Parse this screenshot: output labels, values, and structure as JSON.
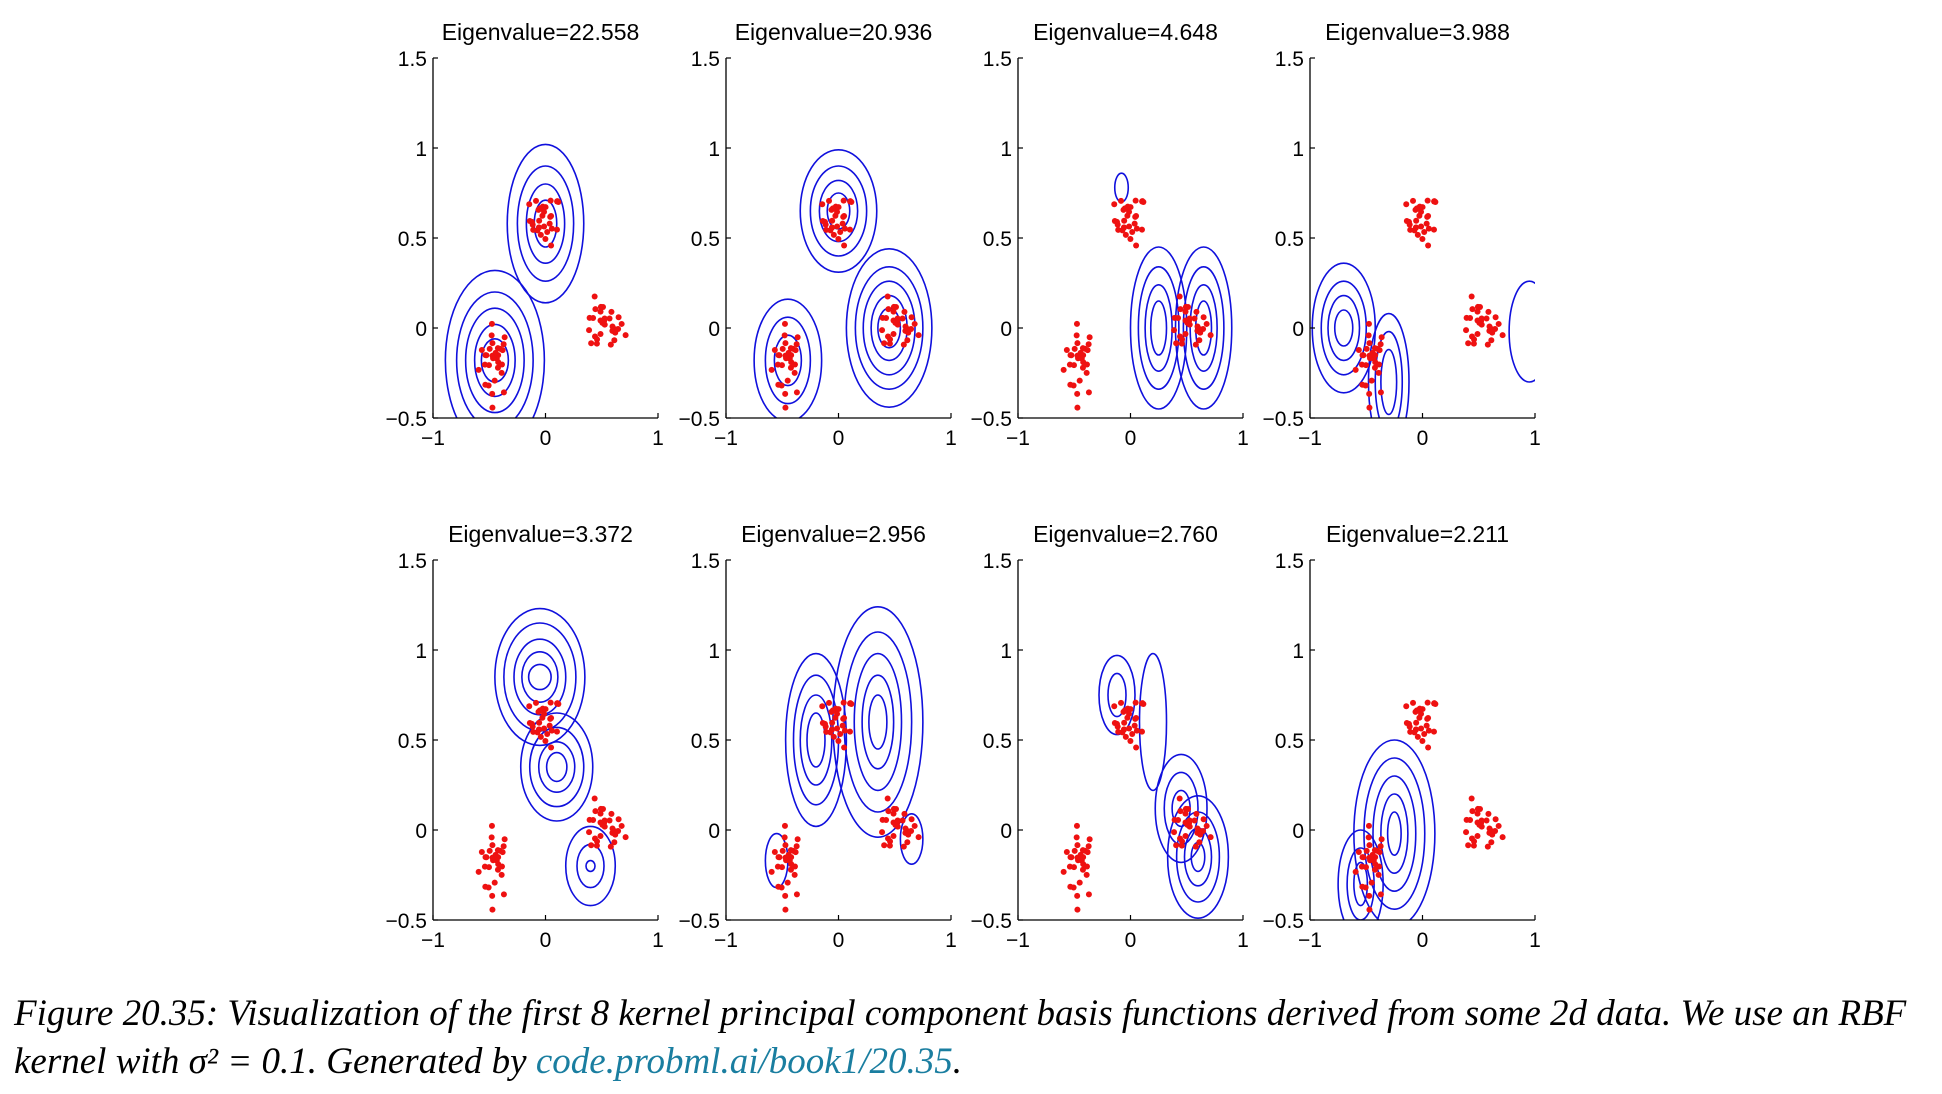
{
  "colors": {
    "contour": "#1010dd",
    "points": "#ee1111",
    "axis": "#000000",
    "link": "#1a7ea0"
  },
  "caption": {
    "text": "Figure 20.35: Visualization of the first 8 kernel principal component basis functions derived from some 2d data. We use an RBF kernel with σ² = 0.1. Generated by",
    "link": "code.probml.ai/book1/20.35",
    "end": "."
  },
  "chart_data": [
    {
      "type": "contour",
      "title": "Eigenvalue=22.558",
      "xlim": [
        -1,
        1
      ],
      "ylim": [
        -0.5,
        1.5
      ],
      "xticks": [
        "−1",
        "0",
        "1"
      ],
      "yticks": [
        "−0.5",
        "0",
        "0.5",
        "1",
        "1.5"
      ],
      "contours": [
        [
          -0.45,
          -0.18,
          0.12,
          0.12
        ],
        [
          -0.45,
          -0.18,
          0.18,
          0.2
        ],
        [
          -0.45,
          -0.18,
          0.26,
          0.29
        ],
        [
          -0.45,
          -0.18,
          0.34,
          0.38
        ],
        [
          -0.45,
          -0.18,
          0.44,
          0.5
        ],
        [
          0.0,
          0.58,
          0.1,
          0.13
        ],
        [
          0.0,
          0.58,
          0.17,
          0.22
        ],
        [
          0.0,
          0.58,
          0.25,
          0.32
        ],
        [
          0.0,
          0.58,
          0.34,
          0.44
        ]
      ]
    },
    {
      "type": "contour",
      "title": "Eigenvalue=20.936",
      "xlim": [
        -1,
        1
      ],
      "ylim": [
        -0.5,
        1.5
      ],
      "xticks": [
        "−1",
        "0",
        "1"
      ],
      "yticks": [
        "−0.5",
        "0",
        "0.5",
        "1",
        "1.5"
      ],
      "contours": [
        [
          -0.45,
          -0.18,
          0.12,
          0.14
        ],
        [
          -0.45,
          -0.18,
          0.2,
          0.24
        ],
        [
          -0.45,
          -0.18,
          0.3,
          0.34
        ],
        [
          0.0,
          0.65,
          0.1,
          0.1
        ],
        [
          0.0,
          0.65,
          0.17,
          0.17
        ],
        [
          0.0,
          0.65,
          0.25,
          0.25
        ],
        [
          0.0,
          0.65,
          0.34,
          0.34
        ],
        [
          0.45,
          0.0,
          0.1,
          0.11
        ],
        [
          0.45,
          0.0,
          0.16,
          0.18
        ],
        [
          0.45,
          0.0,
          0.23,
          0.26
        ],
        [
          0.45,
          0.0,
          0.3,
          0.34
        ],
        [
          0.45,
          0.0,
          0.38,
          0.44
        ]
      ]
    },
    {
      "type": "contour",
      "title": "Eigenvalue=4.648",
      "xlim": [
        -1,
        1
      ],
      "ylim": [
        -0.5,
        1.5
      ],
      "xticks": [
        "−1",
        "0",
        "1"
      ],
      "yticks": [
        "−0.5",
        "0",
        "0.5",
        "1",
        "1.5"
      ],
      "contours": [
        [
          0.25,
          0.0,
          0.07,
          0.15
        ],
        [
          0.25,
          0.0,
          0.12,
          0.24
        ],
        [
          0.25,
          0.0,
          0.18,
          0.34
        ],
        [
          0.25,
          0.0,
          0.25,
          0.45
        ],
        [
          0.65,
          0.0,
          0.07,
          0.15
        ],
        [
          0.65,
          0.0,
          0.12,
          0.24
        ],
        [
          0.65,
          0.0,
          0.18,
          0.34
        ],
        [
          0.65,
          0.0,
          0.25,
          0.45
        ],
        [
          -0.08,
          0.78,
          0.06,
          0.08
        ]
      ]
    },
    {
      "type": "contour",
      "title": "Eigenvalue=3.988",
      "xlim": [
        -1,
        1
      ],
      "ylim": [
        -0.5,
        1.5
      ],
      "xticks": [
        "−1",
        "0",
        "1"
      ],
      "yticks": [
        "−0.5",
        "0",
        "0.5",
        "1",
        "1.5"
      ],
      "contours": [
        [
          -0.7,
          0.0,
          0.08,
          0.1
        ],
        [
          -0.7,
          0.0,
          0.14,
          0.18
        ],
        [
          -0.7,
          0.0,
          0.2,
          0.26
        ],
        [
          -0.7,
          0.0,
          0.28,
          0.36
        ],
        [
          -0.3,
          -0.3,
          0.07,
          0.18
        ],
        [
          -0.3,
          -0.3,
          0.12,
          0.28
        ],
        [
          -0.3,
          -0.3,
          0.18,
          0.38
        ],
        [
          0.95,
          -0.02,
          0.18,
          0.28
        ]
      ]
    },
    {
      "type": "contour",
      "title": "Eigenvalue=3.372",
      "xlim": [
        -1,
        1
      ],
      "ylim": [
        -0.5,
        1.5
      ],
      "xticks": [
        "−1",
        "0",
        "1"
      ],
      "yticks": [
        "−0.5",
        "0",
        "0.5",
        "1",
        "1.5"
      ],
      "contours": [
        [
          -0.05,
          0.85,
          0.1,
          0.07
        ],
        [
          -0.05,
          0.85,
          0.16,
          0.14
        ],
        [
          -0.05,
          0.85,
          0.23,
          0.21
        ],
        [
          -0.05,
          0.85,
          0.32,
          0.3
        ],
        [
          -0.05,
          0.85,
          0.4,
          0.38
        ],
        [
          0.1,
          0.35,
          0.09,
          0.08
        ],
        [
          0.1,
          0.35,
          0.16,
          0.14
        ],
        [
          0.1,
          0.35,
          0.24,
          0.22
        ],
        [
          0.1,
          0.35,
          0.32,
          0.3
        ],
        [
          0.4,
          -0.2,
          0.04,
          0.03
        ],
        [
          0.4,
          -0.2,
          0.12,
          0.12
        ],
        [
          0.4,
          -0.2,
          0.22,
          0.22
        ]
      ]
    },
    {
      "type": "contour",
      "title": "Eigenvalue=2.956",
      "xlim": [
        -1,
        1
      ],
      "ylim": [
        -0.5,
        1.5
      ],
      "xticks": [
        "−1",
        "0",
        "1"
      ],
      "yticks": [
        "−0.5",
        "0",
        "0.5",
        "1",
        "1.5"
      ],
      "contours": [
        [
          -0.2,
          0.5,
          0.08,
          0.15
        ],
        [
          -0.2,
          0.5,
          0.14,
          0.25
        ],
        [
          -0.2,
          0.5,
          0.2,
          0.36
        ],
        [
          -0.2,
          0.5,
          0.27,
          0.48
        ],
        [
          0.35,
          0.6,
          0.08,
          0.15
        ],
        [
          0.35,
          0.6,
          0.14,
          0.26
        ],
        [
          0.35,
          0.6,
          0.21,
          0.38
        ],
        [
          0.35,
          0.6,
          0.3,
          0.5
        ],
        [
          0.35,
          0.6,
          0.4,
          0.64
        ],
        [
          -0.55,
          -0.17,
          0.1,
          0.15
        ],
        [
          0.65,
          -0.05,
          0.1,
          0.14
        ]
      ]
    },
    {
      "type": "contour",
      "title": "Eigenvalue=2.760",
      "xlim": [
        -1,
        1
      ],
      "ylim": [
        -0.5,
        1.5
      ],
      "xticks": [
        "−1",
        "0",
        "1"
      ],
      "yticks": [
        "−0.5",
        "0",
        "0.5",
        "1",
        "1.5"
      ],
      "contours": [
        [
          -0.12,
          0.75,
          0.08,
          0.12
        ],
        [
          -0.12,
          0.75,
          0.16,
          0.22
        ],
        [
          0.6,
          -0.15,
          0.06,
          0.08
        ],
        [
          0.6,
          -0.15,
          0.12,
          0.16
        ],
        [
          0.6,
          -0.15,
          0.19,
          0.25
        ],
        [
          0.6,
          -0.15,
          0.27,
          0.34
        ],
        [
          0.45,
          0.12,
          0.08,
          0.1
        ],
        [
          0.45,
          0.12,
          0.15,
          0.2
        ],
        [
          0.45,
          0.12,
          0.23,
          0.3
        ],
        [
          0.2,
          0.6,
          0.12,
          0.38
        ]
      ]
    },
    {
      "type": "contour",
      "title": "Eigenvalue=2.211",
      "xlim": [
        -1,
        1
      ],
      "ylim": [
        -0.5,
        1.5
      ],
      "xticks": [
        "−1",
        "0",
        "1"
      ],
      "yticks": [
        "−0.5",
        "0",
        "0.5",
        "1",
        "1.5"
      ],
      "contours": [
        [
          -0.25,
          -0.02,
          0.06,
          0.12
        ],
        [
          -0.25,
          -0.02,
          0.12,
          0.22
        ],
        [
          -0.25,
          -0.02,
          0.19,
          0.32
        ],
        [
          -0.25,
          -0.02,
          0.27,
          0.42
        ],
        [
          -0.25,
          -0.02,
          0.36,
          0.52
        ],
        [
          -0.55,
          -0.3,
          0.06,
          0.12
        ],
        [
          -0.55,
          -0.3,
          0.12,
          0.2
        ],
        [
          -0.55,
          -0.3,
          0.2,
          0.3
        ]
      ]
    }
  ],
  "clusters": [
    {
      "cx": -0.45,
      "cy": -0.18,
      "sx": 0.07,
      "sy": 0.1
    },
    {
      "cx": 0.0,
      "cy": 0.6,
      "sx": 0.07,
      "sy": 0.07
    },
    {
      "cx": 0.5,
      "cy": 0.0,
      "sx": 0.1,
      "sy": 0.07
    }
  ]
}
